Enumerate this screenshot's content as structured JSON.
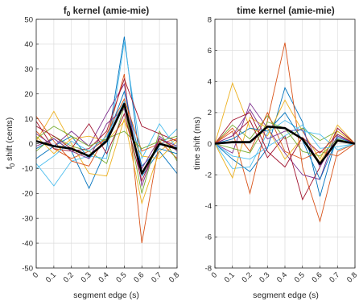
{
  "chart_data": [
    {
      "type": "line",
      "title": "f",
      "title_subscript": "0",
      "title_rest": " kernel (amie-mie)",
      "xlabel": "segment edge (s)",
      "ylabel_main": "f",
      "ylabel_sub": "0",
      "ylabel_rest": " shift (cents)",
      "x": [
        0,
        0.1,
        0.2,
        0.3,
        0.4,
        0.5,
        0.6,
        0.7,
        0.8
      ],
      "xticks": [
        "0",
        "0.1",
        "0.2",
        "0.3",
        "0.4",
        "0.5",
        "0.6",
        "0.7",
        "0.8"
      ],
      "ylim": [
        -50,
        50
      ],
      "yticks": [
        "-50",
        "-40",
        "-30",
        "-20",
        "-10",
        "0",
        "10",
        "20",
        "30",
        "40",
        "50"
      ],
      "grid": true,
      "mean_series": {
        "color": "#000000",
        "values": [
          1,
          -1,
          -2,
          -5,
          1,
          16,
          -12,
          0,
          -2
        ]
      },
      "series": [
        {
          "color": "#0072bd",
          "values": [
            -2,
            2,
            -3,
            -18,
            -2,
            43,
            -13,
            -3,
            -12
          ]
        },
        {
          "color": "#d95319",
          "values": [
            5,
            -2,
            -6,
            -3,
            2,
            28,
            -40,
            1,
            -6
          ]
        },
        {
          "color": "#edb120",
          "values": [
            1,
            13,
            0,
            -12,
            -13,
            10,
            -24,
            -3,
            2
          ]
        },
        {
          "color": "#7e2f8e",
          "values": [
            4,
            -1,
            5,
            -1,
            12,
            24,
            -17,
            3,
            -3
          ]
        },
        {
          "color": "#77ac30",
          "values": [
            -3,
            3,
            -1,
            -3,
            -8,
            15,
            -20,
            5,
            -7
          ]
        },
        {
          "color": "#4dbeee",
          "values": [
            -8,
            -17,
            -7,
            -5,
            -6,
            41,
            -6,
            8,
            -2
          ]
        },
        {
          "color": "#a2142f",
          "values": [
            9,
            -2,
            -3,
            -2,
            5,
            26,
            7,
            4,
            1
          ]
        },
        {
          "color": "#0072bd",
          "values": [
            -6,
            -1,
            3,
            -6,
            2,
            21,
            -9,
            -2,
            -4
          ]
        },
        {
          "color": "#d95319",
          "values": [
            11,
            1,
            -7,
            -9,
            4,
            18,
            -3,
            0,
            2
          ]
        },
        {
          "color": "#edb120",
          "values": [
            3,
            -4,
            2,
            3,
            1,
            9,
            -5,
            -6,
            1
          ]
        },
        {
          "color": "#7e2f8e",
          "values": [
            -1,
            2,
            -3,
            -6,
            8,
            14,
            -10,
            2,
            -1
          ]
        },
        {
          "color": "#77ac30",
          "values": [
            2,
            7,
            3,
            -1,
            2,
            5,
            -2,
            1,
            3
          ]
        },
        {
          "color": "#4dbeee",
          "values": [
            -10,
            -5,
            1,
            -3,
            3,
            17,
            -12,
            -1,
            6
          ]
        },
        {
          "color": "#a2142f",
          "values": [
            7,
            3,
            -2,
            8,
            -4,
            12,
            -15,
            2,
            -2
          ]
        }
      ]
    },
    {
      "type": "line",
      "title": "time kernel (amie-mie)",
      "xlabel": "segment edge (s)",
      "ylabel": "time shift (ms)",
      "x": [
        0,
        0.1,
        0.2,
        0.3,
        0.4,
        0.5,
        0.6,
        0.7,
        0.8
      ],
      "xticks": [
        "0",
        "0.1",
        "0.2",
        "0.3",
        "0.4",
        "0.5",
        "0.6",
        "0.7",
        "0.8"
      ],
      "ylim": [
        -8,
        8
      ],
      "yticks": [
        "-8",
        "-6",
        "-4",
        "-2",
        "0",
        "2",
        "4",
        "6",
        "8"
      ],
      "grid": true,
      "mean_series": {
        "color": "#000000",
        "values": [
          0,
          0.1,
          0.1,
          1.1,
          1.0,
          0.3,
          -1.3,
          0.2,
          0
        ]
      },
      "series": [
        {
          "color": "#0072bd",
          "values": [
            0,
            -1.0,
            -1.8,
            -0.3,
            3.6,
            1.4,
            -3.4,
            0.6,
            0
          ]
        },
        {
          "color": "#d95319",
          "values": [
            0,
            0.8,
            -3.2,
            1.5,
            6.5,
            -1.5,
            -5.0,
            -0.5,
            0
          ]
        },
        {
          "color": "#edb120",
          "values": [
            0,
            3.9,
            1.0,
            0.5,
            2.8,
            0.8,
            -1.0,
            1.2,
            0
          ]
        },
        {
          "color": "#7e2f8e",
          "values": [
            0,
            -0.6,
            2.6,
            1.0,
            -0.6,
            -2.0,
            -2.3,
            1.0,
            0
          ]
        },
        {
          "color": "#77ac30",
          "values": [
            0,
            1.2,
            0.3,
            1.8,
            0.3,
            1.0,
            0.2,
            0.8,
            0
          ]
        },
        {
          "color": "#4dbeee",
          "values": [
            0,
            -1.6,
            -1.5,
            0.7,
            1.5,
            0.8,
            0.6,
            -0.4,
            0
          ]
        },
        {
          "color": "#a2142f",
          "values": [
            0,
            0.5,
            1.5,
            -0.9,
            0.5,
            -3.6,
            -1.5,
            1.0,
            0
          ]
        },
        {
          "color": "#0072bd",
          "values": [
            0,
            0.3,
            1.0,
            0.8,
            2.0,
            0.2,
            -2.3,
            0.4,
            0
          ]
        },
        {
          "color": "#d95319",
          "values": [
            0,
            1.0,
            -0.5,
            2.0,
            -0.5,
            -1.0,
            -0.5,
            -0.8,
            0
          ]
        },
        {
          "color": "#edb120",
          "values": [
            0,
            -2.2,
            1.7,
            1.0,
            -1.0,
            0.4,
            -1.2,
            0.8,
            0
          ]
        },
        {
          "color": "#7e2f8e",
          "values": [
            0,
            0.5,
            2.2,
            0.3,
            0.8,
            0.9,
            -1.5,
            0.5,
            0
          ]
        },
        {
          "color": "#77ac30",
          "values": [
            0,
            -0.3,
            -0.6,
            1.4,
            1.0,
            -0.5,
            -0.8,
            0.3,
            0
          ]
        },
        {
          "color": "#4dbeee",
          "values": [
            0,
            -0.8,
            -1.0,
            -0.2,
            0.5,
            1.2,
            -0.3,
            -0.2,
            0
          ]
        },
        {
          "color": "#a2142f",
          "values": [
            0,
            1.5,
            2.0,
            -0.5,
            -1.5,
            0.4,
            -0.6,
            0.6,
            0
          ]
        }
      ]
    }
  ]
}
